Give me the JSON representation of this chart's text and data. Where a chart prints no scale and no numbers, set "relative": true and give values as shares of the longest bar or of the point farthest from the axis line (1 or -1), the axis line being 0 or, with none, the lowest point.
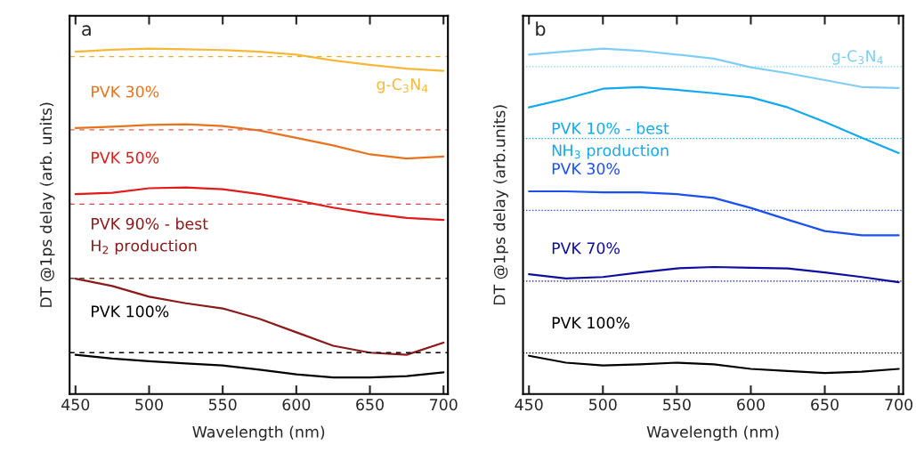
{
  "chart_data": [
    {
      "type": "line",
      "relative": true,
      "title": "a",
      "xlabel": "Wavelength (nm)",
      "ylabel": "DT @1ps delay (arb. units)",
      "xlim": [
        446,
        703
      ],
      "xticks": [
        450,
        500,
        550,
        600,
        650,
        700
      ],
      "tick_labels": "x",
      "grid": false,
      "legend": false,
      "line_style": "solid",
      "x": [
        450,
        475,
        500,
        525,
        550,
        575,
        600,
        625,
        650,
        675,
        700
      ],
      "series": [
        {
          "name": "g-C$_{3}$N$_{4}$",
          "color": "#f5b83a",
          "values": [
            0.991,
            0.997,
            1.0,
            0.998,
            0.996,
            0.991,
            0.983,
            0.966,
            0.953,
            0.942,
            0.936
          ]
        },
        {
          "name": "PVK 30%",
          "color": "#e8731e",
          "values": [
            0.77,
            0.774,
            0.779,
            0.781,
            0.776,
            0.763,
            0.742,
            0.72,
            0.694,
            0.682,
            0.688
          ]
        },
        {
          "name": "PVK 50%",
          "color": "#e01b1b",
          "values": [
            0.579,
            0.583,
            0.596,
            0.598,
            0.593,
            0.579,
            0.561,
            0.54,
            0.523,
            0.51,
            0.504
          ]
        },
        {
          "name": "PVK 90% - best\nH$_{2}$ production",
          "color": "#8b1a1a",
          "values": [
            0.334,
            0.313,
            0.282,
            0.263,
            0.248,
            0.218,
            0.179,
            0.14,
            0.12,
            0.114,
            0.149
          ]
        },
        {
          "name": "PVK 100%",
          "color": "#000000",
          "values": [
            0.114,
            0.103,
            0.095,
            0.089,
            0.083,
            0.071,
            0.057,
            0.048,
            0.048,
            0.052,
            0.063
          ]
        }
      ],
      "ref_lines": [
        {
          "axis": "y",
          "value": 0.977,
          "color": "#e8b030",
          "line_style": "dashed"
        },
        {
          "axis": "y",
          "value": 0.765,
          "color": "#e06050",
          "line_style": "dashed"
        },
        {
          "axis": "y",
          "value": 0.55,
          "color": "#d04050",
          "line_style": "dashed"
        },
        {
          "axis": "y",
          "value": 0.335,
          "color": "#5a3a2a",
          "line_style": "dashed"
        },
        {
          "axis": "y",
          "value": 0.12,
          "color": "#000000",
          "line_style": "dashed"
        }
      ]
    },
    {
      "type": "line",
      "relative": true,
      "title": "b",
      "xlabel": "Wavelength (nm)",
      "ylabel": "DT @1ps delay (arb.units)",
      "xlim": [
        446,
        703
      ],
      "xticks": [
        450,
        500,
        550,
        600,
        650,
        700
      ],
      "tick_labels": "x",
      "grid": false,
      "legend": false,
      "line_style": "solid",
      "x": [
        450,
        475,
        500,
        525,
        550,
        575,
        600,
        625,
        650,
        675,
        700
      ],
      "series": [
        {
          "name": "g-C$_{3}$N$_{4}$",
          "color": "#7fcdf5",
          "values": [
            0.983,
            0.992,
            1.0,
            0.994,
            0.983,
            0.971,
            0.946,
            0.929,
            0.909,
            0.889,
            0.886
          ]
        },
        {
          "name": "PVK 10% - best\nNH$_{3}$ production",
          "color": "#12a9ef",
          "values": [
            0.83,
            0.855,
            0.884,
            0.889,
            0.881,
            0.871,
            0.859,
            0.83,
            0.788,
            0.742,
            0.698
          ]
        },
        {
          "name": "PVK 30%",
          "color": "#1a4ff0",
          "values": [
            0.587,
            0.587,
            0.584,
            0.584,
            0.579,
            0.568,
            0.539,
            0.505,
            0.472,
            0.46,
            0.46
          ]
        },
        {
          "name": "PVK 70%",
          "color": "#0d0d9e",
          "values": [
            0.347,
            0.335,
            0.339,
            0.352,
            0.364,
            0.368,
            0.366,
            0.364,
            0.352,
            0.339,
            0.324
          ]
        },
        {
          "name": "PVK 100%",
          "color": "#000000",
          "values": [
            0.111,
            0.091,
            0.083,
            0.086,
            0.091,
            0.086,
            0.073,
            0.067,
            0.061,
            0.065,
            0.073
          ]
        }
      ],
      "ref_lines": [
        {
          "axis": "y",
          "value": 0.948,
          "color": "#7fcdf5",
          "line_style": "dotted"
        },
        {
          "axis": "y",
          "value": 0.74,
          "color": "#12a9ef",
          "line_style": "dotted"
        },
        {
          "axis": "y",
          "value": 0.532,
          "color": "#1a4ff0",
          "line_style": "dotted"
        },
        {
          "axis": "y",
          "value": 0.327,
          "color": "#0d0d9e",
          "line_style": "dotted"
        },
        {
          "axis": "y",
          "value": 0.119,
          "color": "#000000",
          "line_style": "dotted"
        }
      ]
    }
  ]
}
